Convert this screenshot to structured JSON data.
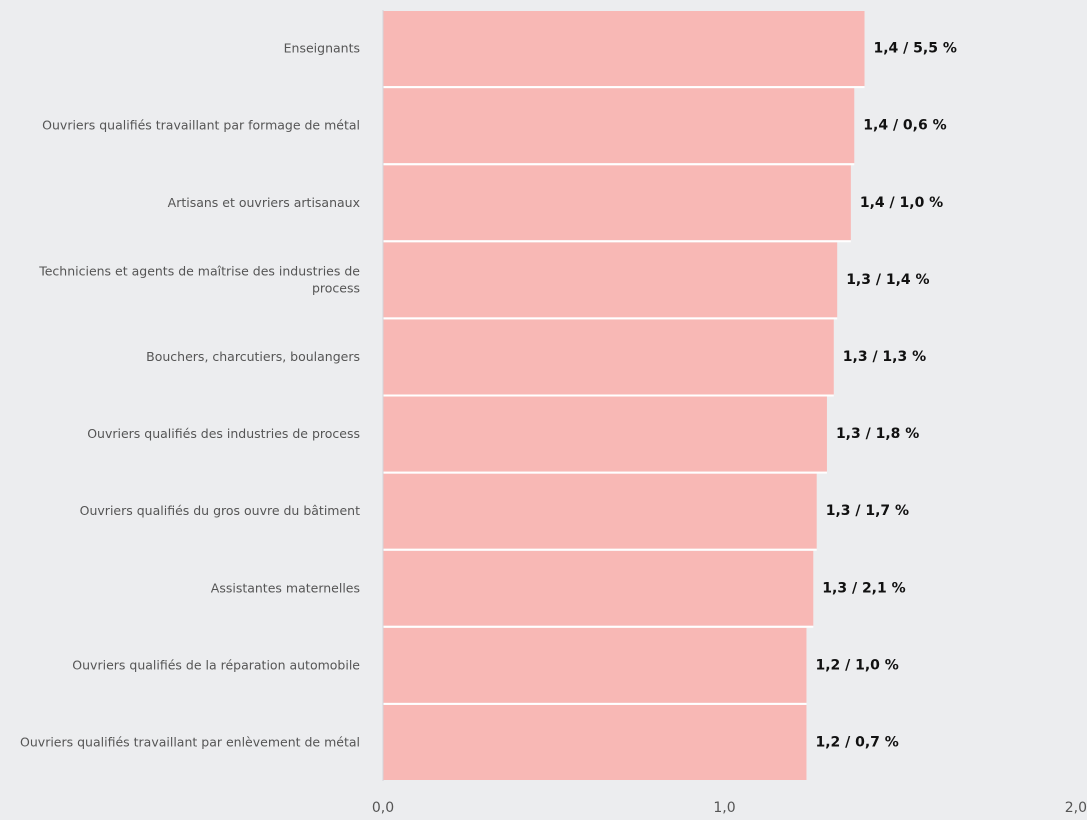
{
  "chart_data": {
    "type": "bar",
    "orientation": "horizontal",
    "categories": [
      "Enseignants",
      "Ouvriers qualifiés travaillant par formage de métal",
      "Artisans et ouvriers artisanaux",
      "Techniciens et agents de maîtrise des industries de process",
      "Bouchers, charcutiers, boulangers",
      "Ouvriers qualifiés des industries de process",
      "Ouvriers qualifiés du gros ouvre du bâtiment",
      "Assistantes maternelles",
      "Ouvriers qualifiés de la réparation automobile",
      "Ouvriers qualifiés travaillant par enlèvement de métal"
    ],
    "values": [
      1.41,
      1.38,
      1.37,
      1.33,
      1.32,
      1.3,
      1.27,
      1.26,
      1.24,
      1.24
    ],
    "data_labels": [
      "1,4 / 5,5 %",
      "1,4 / 0,6 %",
      "1,4 / 1,0 %",
      "1,3 / 1,4 %",
      "1,3 / 1,3 %",
      "1,3 / 1,8 %",
      "1,3 / 1,7 %",
      "1,3 / 2,1 %",
      "1,2 / 1,0 %",
      "1,2 / 0,7 %"
    ],
    "xlim": [
      0,
      2
    ],
    "x_ticks": [
      0,
      1,
      2
    ],
    "x_tick_labels": [
      "0,0",
      "1,0",
      "2,0"
    ],
    "title": "",
    "xlabel": "",
    "ylabel": "",
    "grid": false,
    "colors": {
      "bar": "#f8b8b5",
      "background": "#ecedef",
      "separator": "#ffffff"
    }
  }
}
